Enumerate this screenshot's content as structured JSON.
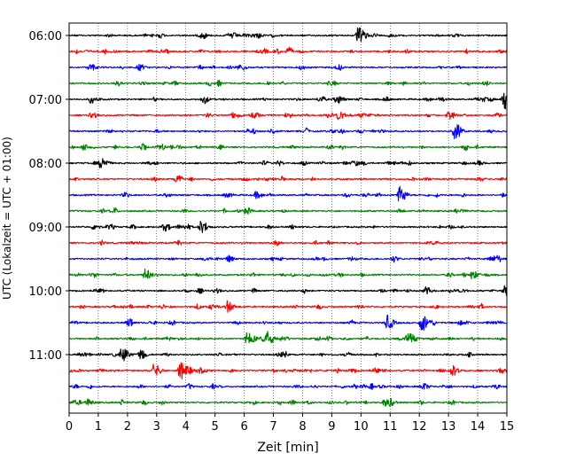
{
  "chart_data": {
    "type": "line",
    "title": "",
    "xlabel": "Zeit  [min]",
    "ylabel": "UTC (Lokalzeit = UTC + 01:00)",
    "xlim": [
      0,
      15
    ],
    "x_ticks": [
      0,
      1,
      2,
      3,
      4,
      5,
      6,
      7,
      8,
      9,
      10,
      11,
      12,
      13,
      14,
      15
    ],
    "x_tick_labels": [
      "0",
      "1",
      "2",
      "3",
      "4",
      "5",
      "6",
      "7",
      "8",
      "9",
      "10",
      "11",
      "12",
      "13",
      "14",
      "15"
    ],
    "y_tick_labels": [
      "06:00",
      "07:00",
      "08:00",
      "09:00",
      "10:00",
      "11:00"
    ],
    "grid": "x-dotted",
    "trace_interval_min": 15,
    "trace_colors": [
      "#000000",
      "#ff0000",
      "#0000ff",
      "#008000"
    ],
    "series": [
      {
        "start": "06:00",
        "color": "#000000",
        "events": [
          [
            9.9,
            1.0
          ]
        ]
      },
      {
        "start": "06:15",
        "color": "#ff0000",
        "events": []
      },
      {
        "start": "06:30",
        "color": "#0000ff",
        "events": [
          [
            0.7,
            0.4
          ]
        ]
      },
      {
        "start": "06:45",
        "color": "#008000",
        "events": []
      },
      {
        "start": "07:00",
        "color": "#000000",
        "events": [
          [
            9.2,
            0.4
          ],
          [
            14.9,
            1.0
          ]
        ]
      },
      {
        "start": "07:15",
        "color": "#ff0000",
        "events": [
          [
            6.3,
            0.4
          ],
          [
            9.2,
            0.4
          ],
          [
            13.0,
            0.5
          ]
        ]
      },
      {
        "start": "07:30",
        "color": "#0000ff",
        "events": [
          [
            13.2,
            1.1
          ]
        ]
      },
      {
        "start": "07:45",
        "color": "#008000",
        "events": []
      },
      {
        "start": "08:00",
        "color": "#000000",
        "events": [
          [
            1.1,
            0.7
          ]
        ]
      },
      {
        "start": "08:15",
        "color": "#ff0000",
        "events": []
      },
      {
        "start": "08:30",
        "color": "#0000ff",
        "events": [
          [
            6.4,
            0.4
          ],
          [
            11.3,
            1.0
          ]
        ]
      },
      {
        "start": "08:45",
        "color": "#008000",
        "events": []
      },
      {
        "start": "09:00",
        "color": "#000000",
        "events": [
          [
            4.5,
            0.7
          ]
        ]
      },
      {
        "start": "09:15",
        "color": "#ff0000",
        "events": []
      },
      {
        "start": "09:30",
        "color": "#0000ff",
        "events": []
      },
      {
        "start": "09:45",
        "color": "#008000",
        "events": [
          [
            2.6,
            0.7
          ],
          [
            13.8,
            0.5
          ]
        ]
      },
      {
        "start": "10:00",
        "color": "#000000",
        "events": [
          [
            12.2,
            0.4
          ],
          [
            14.9,
            0.5
          ]
        ]
      },
      {
        "start": "10:15",
        "color": "#ff0000",
        "events": [
          [
            5.4,
            0.7
          ]
        ]
      },
      {
        "start": "10:30",
        "color": "#0000ff",
        "events": [
          [
            10.9,
            0.8
          ],
          [
            12.1,
            0.7
          ]
        ]
      },
      {
        "start": "10:45",
        "color": "#008000",
        "events": [
          [
            6.1,
            0.8
          ],
          [
            6.8,
            0.7
          ],
          [
            11.6,
            0.8
          ]
        ]
      },
      {
        "start": "11:00",
        "color": "#000000",
        "events": [
          [
            1.8,
            1.0
          ],
          [
            2.4,
            0.5
          ]
        ]
      },
      {
        "start": "11:15",
        "color": "#ff0000",
        "events": [
          [
            2.9,
            0.8
          ],
          [
            3.8,
            1.1
          ],
          [
            13.1,
            0.6
          ]
        ]
      },
      {
        "start": "11:30",
        "color": "#0000ff",
        "events": [
          [
            12.1,
            0.4
          ]
        ]
      },
      {
        "start": "11:45",
        "color": "#008000",
        "events": [
          [
            0.6,
            0.4
          ],
          [
            10.8,
            0.4
          ]
        ]
      }
    ]
  }
}
